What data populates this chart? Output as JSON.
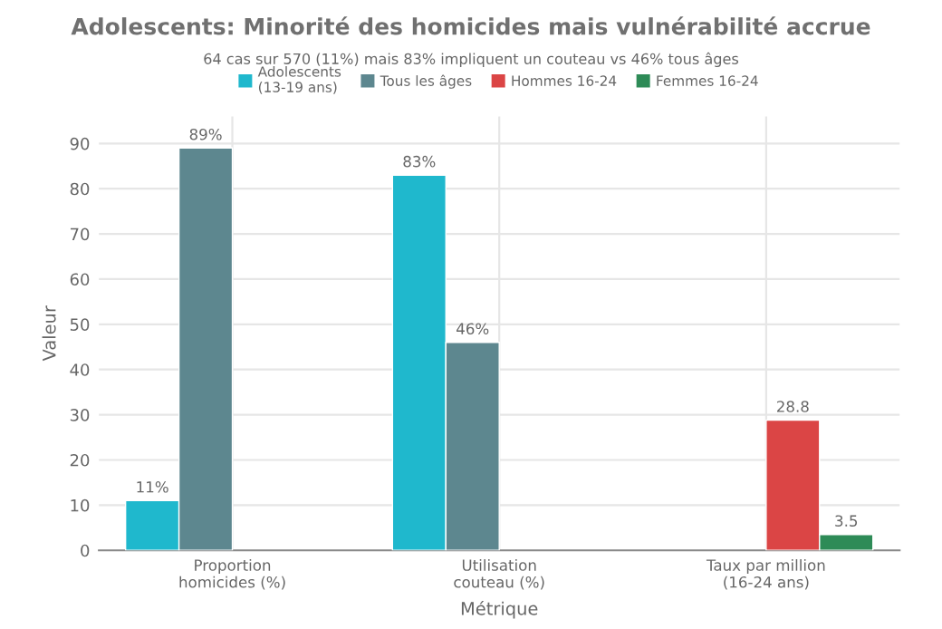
{
  "chart_data": {
    "type": "bar",
    "title": "Adolescents: Minorité des homicides mais vulnérabilité accrue",
    "subtitle": "64 cas sur 570 (11%) mais 83% impliquent un couteau vs 46% tous âges",
    "xlabel": "Métrique",
    "ylabel": "Valeur",
    "categories": [
      "Proportion\nhomicides (%)",
      "Utilisation\ncouteau (%)",
      "Taux par million\n(16-24 ans)"
    ],
    "series": [
      {
        "name": "Adolescents\n(13-19 ans)",
        "color": "#1fb8cd",
        "values": [
          11,
          83,
          null
        ],
        "value_labels": [
          "11%",
          "83%",
          null
        ]
      },
      {
        "name": "Tous les âges",
        "color": "#5d878f",
        "values": [
          89,
          46,
          null
        ],
        "value_labels": [
          "89%",
          "46%",
          null
        ]
      },
      {
        "name": "Hommes 16-24",
        "color": "#db4545",
        "values": [
          null,
          null,
          28.8
        ],
        "value_labels": [
          null,
          null,
          "28.8"
        ]
      },
      {
        "name": "Femmes 16-24",
        "color": "#2e8b57",
        "values": [
          null,
          null,
          3.5
        ],
        "value_labels": [
          null,
          null,
          "3.5"
        ]
      }
    ],
    "ylim": [
      0,
      96
    ],
    "yticks": [
      0,
      10,
      20,
      30,
      40,
      50,
      60,
      70,
      80,
      90
    ],
    "grid": true,
    "legend": "top"
  }
}
